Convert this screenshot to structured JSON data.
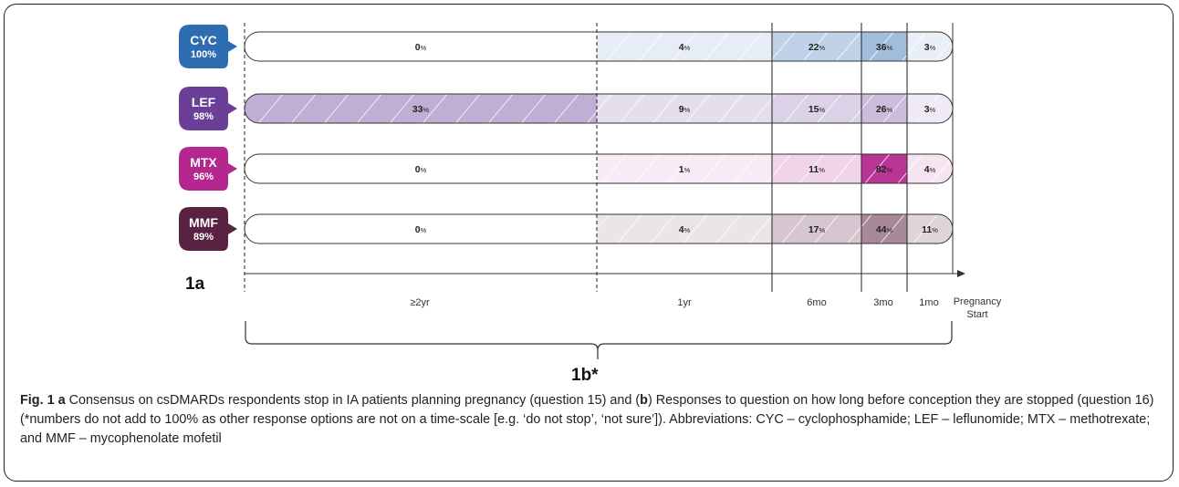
{
  "chart_data": {
    "type": "bar",
    "title": "",
    "x_categories": [
      "≥2yr",
      "1yr",
      "6mo",
      "3mo",
      "1mo"
    ],
    "end_label_line1": "Pregnancy",
    "end_label_line2": "Start",
    "series": [
      {
        "name": "CYC",
        "stop_percent": "100%",
        "color": "#2f6db2",
        "values": [
          0,
          4,
          22,
          36,
          3
        ]
      },
      {
        "name": "LEF",
        "stop_percent": "98%",
        "color": "#6b3f98",
        "values": [
          33,
          9,
          15,
          26,
          3
        ]
      },
      {
        "name": "MTX",
        "stop_percent": "96%",
        "color": "#b4278e",
        "values": [
          0,
          1,
          11,
          82,
          4
        ]
      },
      {
        "name": "MMF",
        "stop_percent": "89%",
        "color": "#5a2242",
        "values": [
          0,
          4,
          17,
          44,
          11
        ]
      }
    ]
  },
  "panel_a_label": "1a",
  "panel_b_label": "1b*",
  "caption": {
    "fig_label": "Fig. 1",
    "a_label": "a",
    "part1": " Consensus on csDMARDs respondents stop in IA patients planning pregnancy (question 15) and (",
    "b_label": "b",
    "part2": ") Responses to question on how long before conception they are stopped (question 16) (*numbers do not add to 100% as other response options are not on a time-scale [e.g. ‘do not stop’, ‘not sure’]). Abbreviations: CYC – cyclophosphamide; LEF – leflunomide; MTX – methotrexate; and MMF – mycophenolate mofetil"
  }
}
